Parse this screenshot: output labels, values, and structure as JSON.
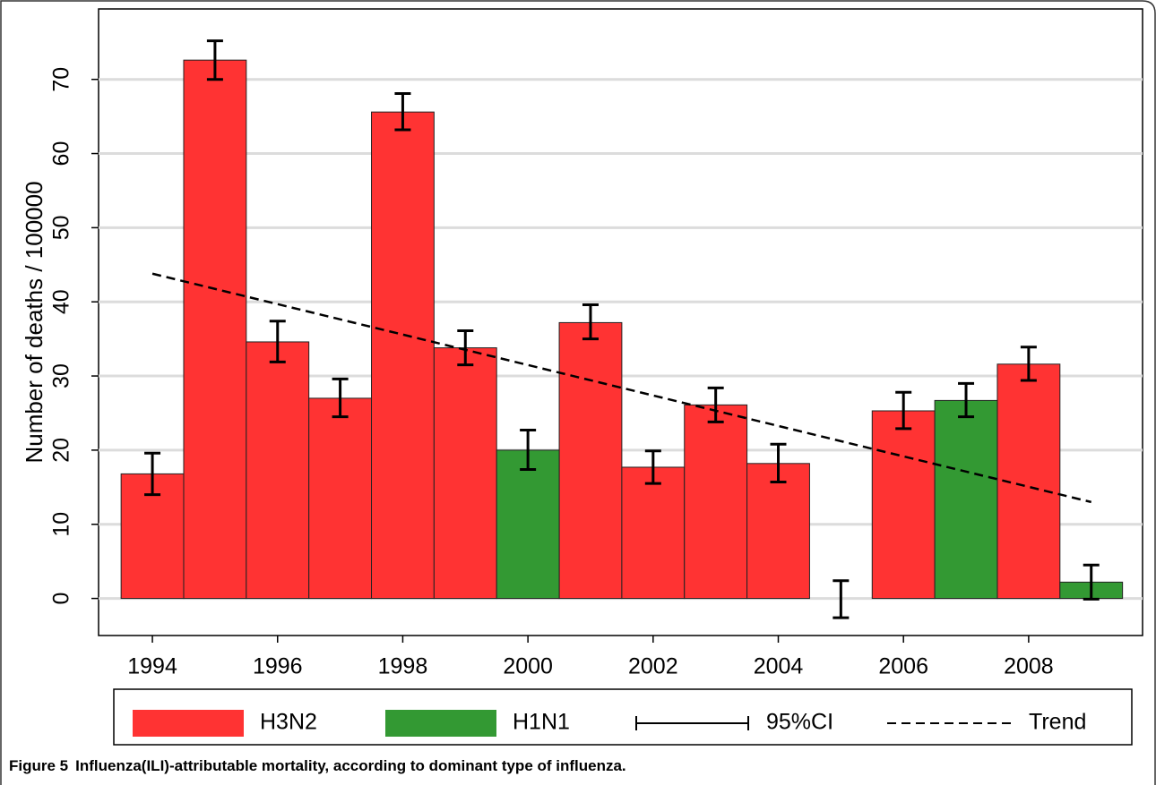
{
  "chart_data": {
    "type": "bar",
    "ylabel": "Number of deaths / 100000",
    "x": [
      1994,
      1995,
      1996,
      1997,
      1998,
      1999,
      2000,
      2001,
      2002,
      2003,
      2004,
      2005,
      2006,
      2007,
      2008,
      2009
    ],
    "series": [
      {
        "name": "H3N2",
        "color": "#ff3333",
        "values": [
          16.8,
          72.6,
          34.6,
          27,
          65.6,
          33.8,
          null,
          37.2,
          17.7,
          26.1,
          18.2,
          0,
          25.3,
          null,
          31.6,
          null
        ]
      },
      {
        "name": "H1N1",
        "color": "#339933",
        "values": [
          null,
          null,
          null,
          null,
          null,
          null,
          20,
          null,
          null,
          null,
          null,
          null,
          null,
          26.7,
          null,
          2.2
        ]
      }
    ],
    "errors": {
      "name": "95%CI",
      "lower": [
        14,
        70,
        31.9,
        24.5,
        63.2,
        31.5,
        17.4,
        35,
        15.5,
        23.8,
        15.7,
        -2.6,
        22.9,
        24.5,
        29.4,
        -0.1
      ],
      "upper": [
        19.6,
        75.2,
        37.4,
        29.6,
        68.1,
        36.1,
        22.7,
        39.6,
        19.9,
        28.4,
        20.8,
        2.4,
        27.8,
        29,
        33.9,
        4.5
      ]
    },
    "trend": {
      "name": "Trend",
      "x": [
        1994,
        2009
      ],
      "values": [
        43.8,
        13
      ]
    },
    "xlim": [
      1993.14,
      2009.82
    ],
    "xticks": [
      1994,
      1996,
      1998,
      2000,
      2002,
      2004,
      2006,
      2008
    ],
    "ylim": [
      -5,
      79.5
    ],
    "yticks": [
      0,
      10,
      20,
      30,
      40,
      50,
      60,
      70
    ],
    "grid": true,
    "caption": {
      "label": "Figure 5",
      "text": "Influenza(ILI)-attributable mortality, according to dominant type of influenza."
    }
  }
}
